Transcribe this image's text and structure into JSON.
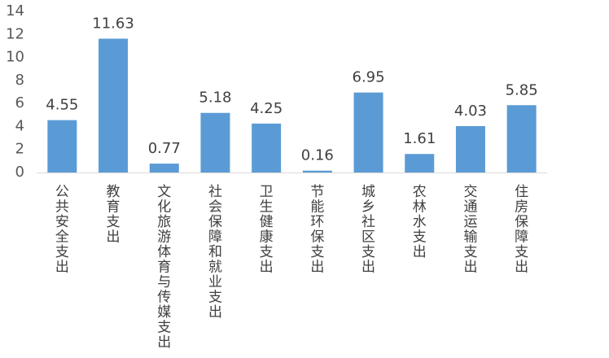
{
  "chart_data": {
    "type": "bar",
    "categories": [
      "公共安全支出",
      "教育支出",
      "文化旅游体育与传媒支出",
      "社会保障和就业支出",
      "卫生健康支出",
      "节能环保支出",
      "城乡社区支出",
      "农林水支出",
      "交通运输支出",
      "住房保障支出"
    ],
    "values": [
      4.55,
      11.63,
      0.77,
      5.18,
      4.25,
      0.16,
      6.95,
      1.61,
      4.03,
      5.85
    ],
    "data_labels": [
      "4.55",
      "11.63",
      "0.77",
      "5.18",
      "4.25",
      "0.16",
      "6.95",
      "1.61",
      "4.03",
      "5.85"
    ],
    "yticks": [
      "0",
      "2",
      "4",
      "6",
      "8",
      "10",
      "12",
      "14"
    ],
    "ylim": [
      0,
      14
    ],
    "grid": false,
    "legend": "none",
    "bar_color": "#5b9bd5"
  }
}
